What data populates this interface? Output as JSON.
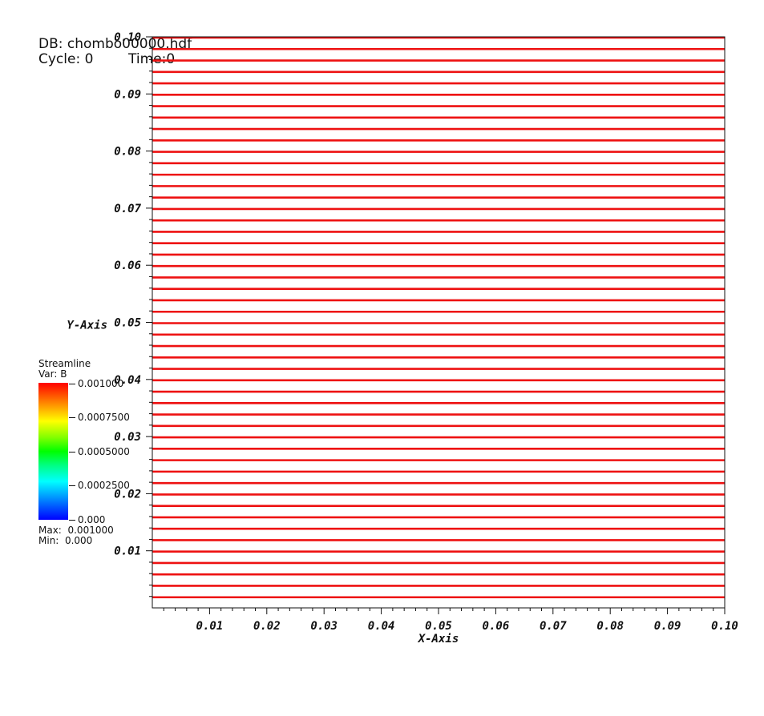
{
  "info": {
    "db": "DB: chombo00000.hdf",
    "cycle": "Cycle: 0",
    "time": "Time:0"
  },
  "legend": {
    "title": "Streamline",
    "var": "Var: B",
    "ticks": [
      "0.001000",
      "0.0007500",
      "0.0005000",
      "0.0002500",
      "0.000"
    ],
    "max": "Max:  0.001000",
    "min": "Min:  0.000"
  },
  "colors": {
    "streamline": "#ee1111"
  },
  "chart_data": {
    "type": "line",
    "xlabel": "X-Axis",
    "ylabel": "Y-Axis",
    "xlim": [
      0.0,
      0.1
    ],
    "ylim": [
      0.0,
      0.1
    ],
    "x_ticks": [
      "0.01",
      "0.02",
      "0.03",
      "0.04",
      "0.05",
      "0.06",
      "0.07",
      "0.08",
      "0.09",
      "0.10"
    ],
    "y_ticks": [
      "0.01",
      "0.02",
      "0.03",
      "0.04",
      "0.05",
      "0.06",
      "0.07",
      "0.08",
      "0.09",
      "0.10"
    ],
    "grid": false,
    "streamline_y_values": [
      0.002,
      0.004,
      0.006,
      0.008,
      0.01,
      0.012,
      0.014,
      0.016,
      0.018,
      0.02,
      0.022,
      0.024,
      0.026,
      0.028,
      0.03,
      0.032,
      0.034,
      0.036,
      0.038,
      0.04,
      0.042,
      0.044,
      0.046,
      0.048,
      0.05,
      0.052,
      0.054,
      0.056,
      0.058,
      0.06,
      0.062,
      0.064,
      0.066,
      0.068,
      0.07,
      0.072,
      0.074,
      0.076,
      0.078,
      0.08,
      0.082,
      0.084,
      0.086,
      0.088,
      0.09,
      0.092,
      0.094,
      0.096,
      0.098,
      0.1
    ]
  }
}
